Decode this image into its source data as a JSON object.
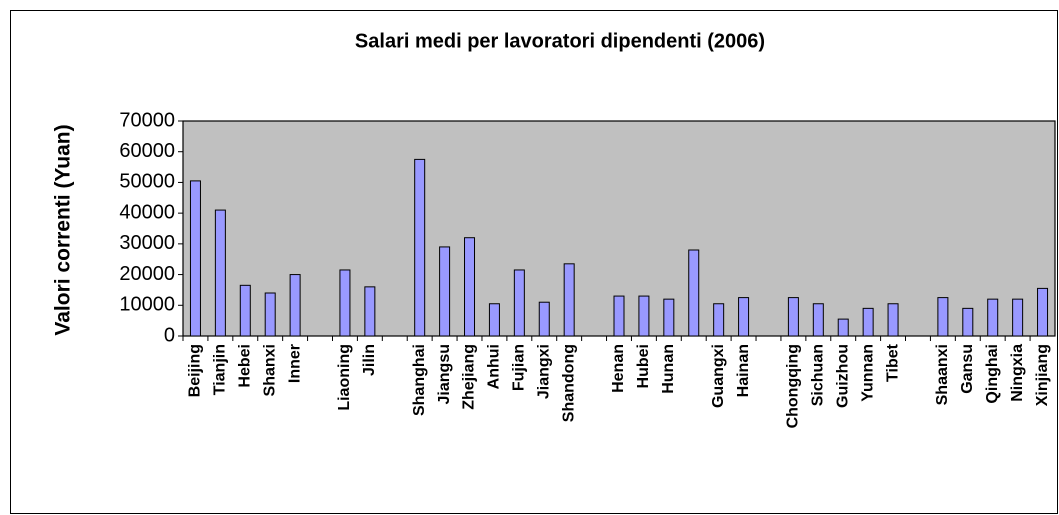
{
  "chart_data": {
    "type": "bar",
    "title": "Salari medi per lavoratori dipendenti (2006)",
    "y_label": "Valori correnti (Yuan)",
    "categories": [
      "Beijing",
      "Tianjin",
      "Hebei",
      "Shanxi",
      "Inner",
      null,
      "Liaoning",
      "Jilin",
      null,
      "Shanghai",
      "Jiangsu",
      "Zhejiang",
      "Anhui",
      "Fujian",
      "Jiangxi",
      "Shandong",
      null,
      "Henan",
      "Hubei",
      "Hunan",
      null,
      "Guangxi",
      "Hainan",
      null,
      "Chongqing",
      "Sichuan",
      "Guizhou",
      "Yunnan",
      "Tibet",
      null,
      "Shaanxi",
      "Gansu",
      "Qinghai",
      "Ningxia",
      "Xinjiang"
    ],
    "values": [
      50500,
      41000,
      16500,
      14000,
      20000,
      null,
      21500,
      16000,
      null,
      57500,
      29000,
      32000,
      10500,
      21500,
      11000,
      23500,
      null,
      13000,
      13000,
      12000,
      28000,
      10500,
      12500,
      null,
      12500,
      10500,
      5500,
      9000,
      10500,
      null,
      12500,
      9000,
      12000,
      12000,
      15500
    ],
    "color": "#9999ff",
    "plot_background": "#c0c0c0",
    "title_color": "#ff0000",
    "ylim": [
      0,
      70000
    ],
    "yticks": [
      0,
      10000,
      20000,
      30000,
      40000,
      50000,
      60000,
      70000
    ]
  }
}
